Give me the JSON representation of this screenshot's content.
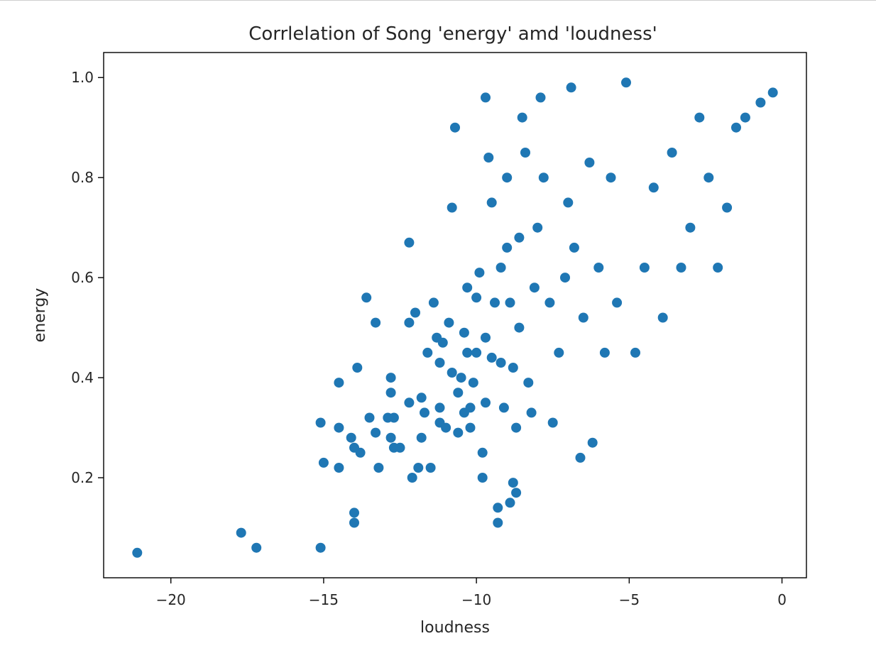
{
  "chart_data": {
    "type": "scatter",
    "title": "Corrlelation of Song 'energy' amd 'loudness'",
    "xlabel": "loudness",
    "ylabel": "energy",
    "xlim": [
      -22.2,
      0.8
    ],
    "ylim": [
      0.0,
      1.05
    ],
    "xticks": [
      -20,
      -15,
      -10,
      -5,
      0
    ],
    "xtick_labels": [
      "−20",
      "−15",
      "−10",
      "−5",
      "0"
    ],
    "yticks": [
      0.2,
      0.4,
      0.6,
      0.8,
      1.0
    ],
    "ytick_labels": [
      "0.2",
      "0.4",
      "0.6",
      "0.8",
      "1.0"
    ],
    "grid": false,
    "legend": "none",
    "color": "#1f77b4",
    "series": [
      {
        "x": [
          -21.1,
          -17.7,
          -17.2,
          -15.1,
          -15.1,
          -15.0,
          -14.5,
          -14.5,
          -14.5,
          -14.1,
          -14.0,
          -14.0,
          -14.0,
          -13.9,
          -13.8,
          -13.6,
          -13.5,
          -13.3,
          -13.3,
          -13.2,
          -12.9,
          -12.8,
          -12.8,
          -12.8,
          -12.7,
          -12.7,
          -12.5,
          -12.2,
          -12.2,
          -12.2,
          -12.1,
          -12.0,
          -11.9,
          -11.8,
          -11.8,
          -11.7,
          -11.6,
          -11.5,
          -11.4,
          -11.3,
          -11.2,
          -11.2,
          -11.2,
          -11.1,
          -11.0,
          -10.9,
          -10.8,
          -10.8,
          -10.7,
          -10.6,
          -10.6,
          -10.5,
          -10.4,
          -10.4,
          -10.3,
          -10.3,
          -10.2,
          -10.2,
          -10.1,
          -10.0,
          -10.0,
          -9.9,
          -9.8,
          -9.8,
          -9.7,
          -9.7,
          -9.7,
          -9.6,
          -9.5,
          -9.5,
          -9.4,
          -9.3,
          -9.3,
          -9.2,
          -9.2,
          -9.1,
          -9.0,
          -9.0,
          -8.9,
          -8.9,
          -8.8,
          -8.8,
          -8.7,
          -8.7,
          -8.6,
          -8.6,
          -8.5,
          -8.4,
          -8.3,
          -8.2,
          -8.1,
          -8.0,
          -7.9,
          -7.8,
          -7.6,
          -7.5,
          -7.3,
          -7.1,
          -7.0,
          -6.9,
          -6.8,
          -6.6,
          -6.5,
          -6.3,
          -6.2,
          -6.0,
          -5.8,
          -5.6,
          -5.4,
          -5.1,
          -4.8,
          -4.5,
          -4.2,
          -3.9,
          -3.6,
          -3.3,
          -3.0,
          -2.7,
          -2.4,
          -2.1,
          -1.8,
          -1.5,
          -1.2,
          -0.7,
          -0.3
        ],
        "y": [
          0.05,
          0.09,
          0.06,
          0.06,
          0.31,
          0.23,
          0.3,
          0.22,
          0.39,
          0.28,
          0.26,
          0.13,
          0.11,
          0.42,
          0.25,
          0.56,
          0.32,
          0.29,
          0.51,
          0.22,
          0.32,
          0.28,
          0.37,
          0.4,
          0.26,
          0.32,
          0.26,
          0.67,
          0.51,
          0.35,
          0.2,
          0.53,
          0.22,
          0.28,
          0.36,
          0.33,
          0.45,
          0.22,
          0.55,
          0.48,
          0.31,
          0.34,
          0.43,
          0.47,
          0.3,
          0.51,
          0.41,
          0.74,
          0.9,
          0.29,
          0.37,
          0.4,
          0.49,
          0.33,
          0.45,
          0.58,
          0.34,
          0.3,
          0.39,
          0.45,
          0.56,
          0.61,
          0.2,
          0.25,
          0.35,
          0.48,
          0.96,
          0.84,
          0.44,
          0.75,
          0.55,
          0.14,
          0.11,
          0.43,
          0.62,
          0.34,
          0.66,
          0.8,
          0.15,
          0.55,
          0.19,
          0.42,
          0.17,
          0.3,
          0.5,
          0.68,
          0.92,
          0.85,
          0.39,
          0.33,
          0.58,
          0.7,
          0.96,
          0.8,
          0.55,
          0.31,
          0.45,
          0.6,
          0.75,
          0.98,
          0.66,
          0.24,
          0.52,
          0.83,
          0.27,
          0.62,
          0.45,
          0.8,
          0.55,
          0.99,
          0.45,
          0.62,
          0.78,
          0.52,
          0.85,
          0.62,
          0.7,
          0.92,
          0.8,
          0.62,
          0.74,
          0.9,
          0.92,
          0.95,
          0.97
        ]
      }
    ]
  }
}
